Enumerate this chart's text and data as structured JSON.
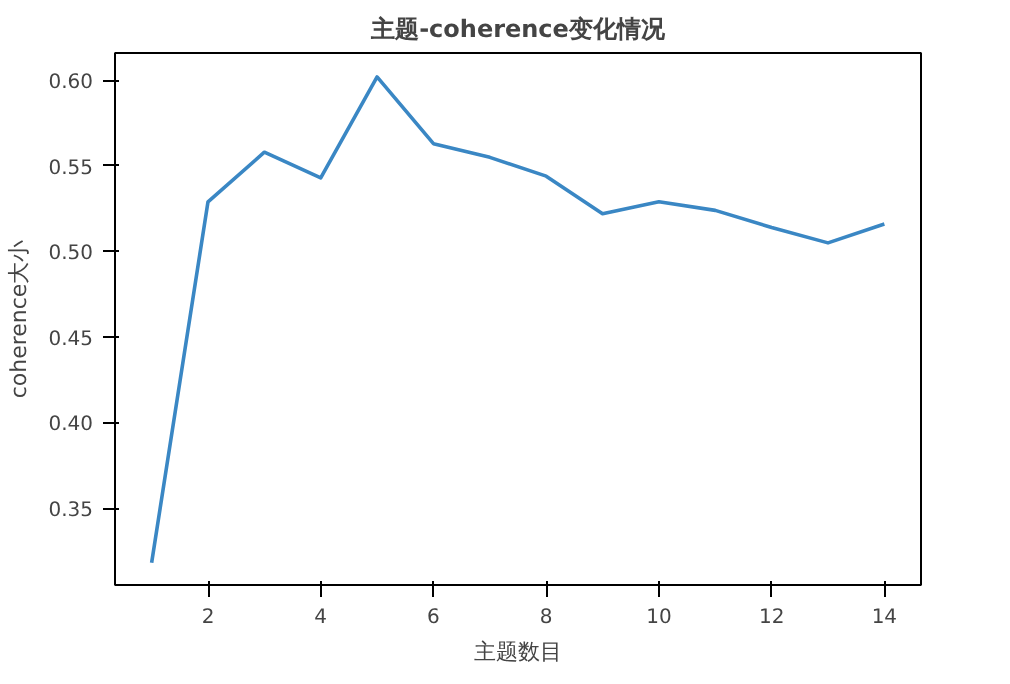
{
  "chart_data": {
    "type": "line",
    "title": "主题-coherence变化情况",
    "xlabel": "主题数目",
    "ylabel": "coherence大小",
    "x": [
      1,
      2,
      3,
      4,
      5,
      6,
      7,
      8,
      9,
      10,
      11,
      12,
      13,
      14
    ],
    "series": [
      {
        "color": "#3a87c4",
        "values": [
          0.318,
          0.529,
          0.558,
          0.543,
          0.602,
          0.563,
          0.555,
          0.544,
          0.522,
          0.529,
          0.524,
          0.514,
          0.505,
          0.516
        ]
      }
    ],
    "xlim": [
      0.35,
      14.65
    ],
    "ylim": [
      0.305,
      0.616
    ],
    "xticks": [
      2,
      4,
      6,
      8,
      10,
      12,
      14
    ],
    "yticks": [
      0.35,
      {
        "value": 0.4,
        "label": "0.40"
      },
      0.45,
      {
        "value": 0.5,
        "label": "0.50"
      },
      0.55,
      {
        "value": 0.6,
        "label": "0.60"
      }
    ],
    "grid": false,
    "marker": "none",
    "line_style": "solid"
  }
}
